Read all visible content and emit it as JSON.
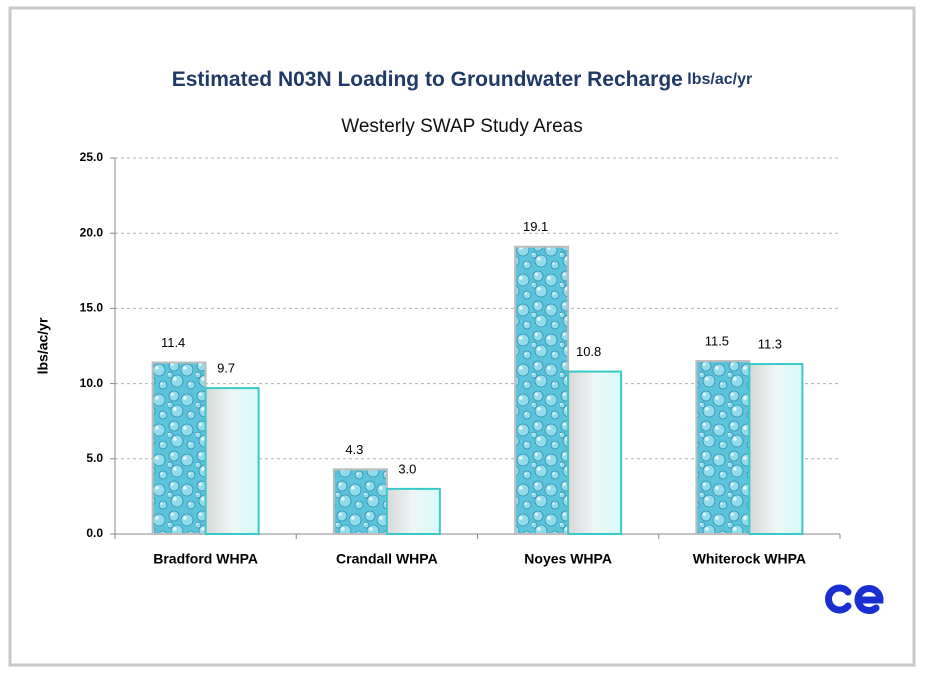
{
  "chart_data": {
    "type": "bar",
    "title": "Estimated N03N Loading to Groundwater Recharge",
    "title_units": "lbs/ac/yr",
    "subtitle": "Westerly SWAP Study Areas",
    "ylabel": "lbs/ac/yr",
    "categories": [
      "Bradford WHPA",
      "Crandall WHPA",
      "Noyes WHPA",
      "Whiterock WHPA"
    ],
    "series": [
      {
        "color": "#5cc3dc",
        "values": [
          11.4,
          4.3,
          19.1,
          11.5
        ]
      },
      {
        "color": "#3cc8c8",
        "values": [
          9.7,
          3.0,
          10.8,
          11.3
        ],
        "value_labels": [
          "9.7",
          "3.0",
          "10.8",
          "11.3"
        ]
      }
    ],
    "ylim": [
      0,
      25
    ],
    "yticks": [
      {
        "value": 0,
        "label": "0.0"
      },
      {
        "value": 5,
        "label": "5.0"
      },
      {
        "value": 10,
        "label": "10.0"
      },
      {
        "value": 15,
        "label": "15.0"
      },
      {
        "value": 20,
        "label": "20.0"
      },
      {
        "value": 25,
        "label": "25.0"
      }
    ],
    "grid": true
  }
}
